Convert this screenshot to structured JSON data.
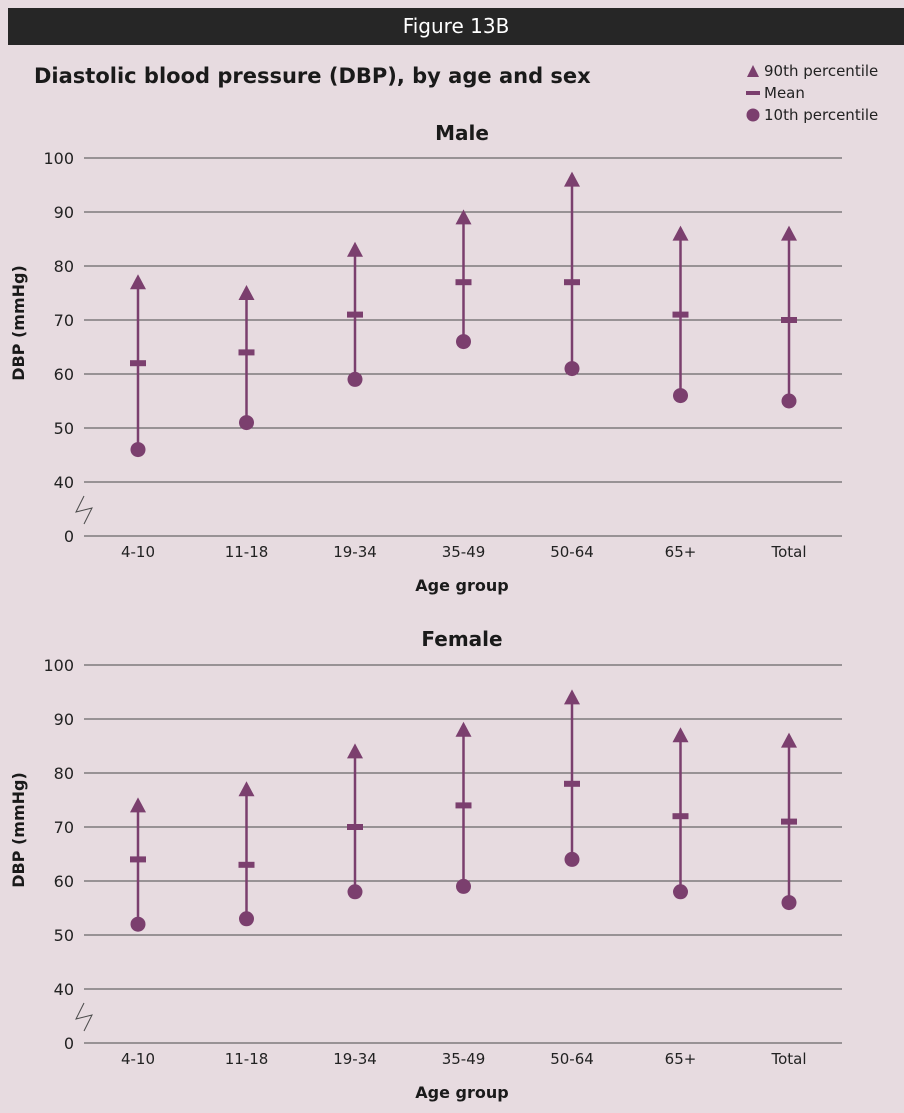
{
  "header": {
    "label": "Figure 13B"
  },
  "figure_title": "Diastolic blood pressure (DBP), by age and sex",
  "colors": {
    "mark": "#7b3f6e",
    "grid": "#4a4a4a",
    "background": "#e7dbe0",
    "header_bg": "#262626"
  },
  "legend": {
    "items": [
      {
        "label": "90th percentile",
        "icon": "triangle-icon"
      },
      {
        "label": "Mean",
        "icon": "dash-icon"
      },
      {
        "label": "10th percentile",
        "icon": "circle-icon"
      }
    ],
    "placement": "top-right"
  },
  "chart_data": [
    {
      "type": "scatter",
      "title": "Male",
      "xlabel": "Age group",
      "ylabel": "DBP (mmHg)",
      "categories": [
        "4-10",
        "11-18",
        "19-34",
        "35-49",
        "50-64",
        "65+",
        "Total"
      ],
      "yticks": [
        0,
        40,
        50,
        60,
        70,
        80,
        90,
        100
      ],
      "ylim": [
        40,
        100
      ],
      "axis_break": true,
      "grid": true,
      "series": [
        {
          "name": "90th percentile",
          "marker": "triangle",
          "values": [
            77,
            75,
            83,
            89,
            96,
            86,
            86
          ]
        },
        {
          "name": "Mean",
          "marker": "dash",
          "values": [
            62,
            64,
            71,
            77,
            77,
            71,
            70
          ]
        },
        {
          "name": "10th percentile",
          "marker": "circle",
          "values": [
            46,
            51,
            59,
            66,
            61,
            56,
            55
          ]
        }
      ]
    },
    {
      "type": "scatter",
      "title": "Female",
      "xlabel": "Age group",
      "ylabel": "DBP (mmHg)",
      "categories": [
        "4-10",
        "11-18",
        "19-34",
        "35-49",
        "50-64",
        "65+",
        "Total"
      ],
      "yticks": [
        0,
        40,
        50,
        60,
        70,
        80,
        90,
        100
      ],
      "ylim": [
        40,
        100
      ],
      "axis_break": true,
      "grid": true,
      "series": [
        {
          "name": "90th percentile",
          "marker": "triangle",
          "values": [
            74,
            77,
            84,
            88,
            94,
            87,
            86
          ]
        },
        {
          "name": "Mean",
          "marker": "dash",
          "values": [
            64,
            63,
            70,
            74,
            78,
            72,
            71
          ]
        },
        {
          "name": "10th percentile",
          "marker": "circle",
          "values": [
            52,
            53,
            58,
            59,
            64,
            58,
            56
          ]
        }
      ]
    }
  ]
}
